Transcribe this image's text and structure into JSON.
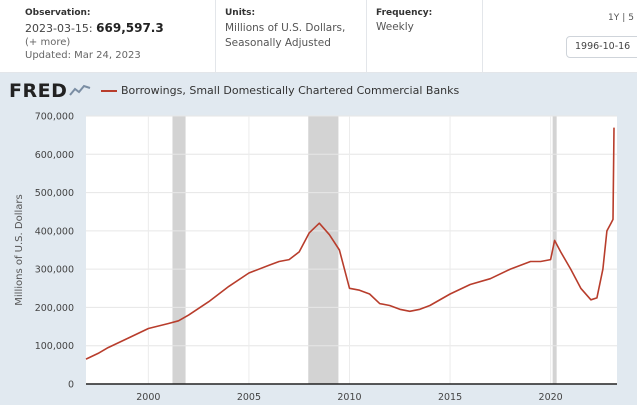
{
  "header": {
    "observation_label": "Observation:",
    "observation_date": "2023-03-15:",
    "observation_value": "669,597.3",
    "more_label": "(+ more)",
    "updated_text": "Updated: Mar 24, 2023",
    "units_label": "Units:",
    "units_line1": "Millions of U.S. Dollars,",
    "units_line2": "Seasonally Adjusted",
    "frequency_label": "Frequency:",
    "frequency_value": "Weekly",
    "range_1y": "1Y",
    "range_next": "5",
    "start_date": "1996-10-16"
  },
  "logo_text": "FRED",
  "colors": {
    "series": "#b83d2c",
    "recession": "#d3d3d3",
    "panel": "#e1e9f0",
    "plot_bg": "#ffffff"
  },
  "chart_data": {
    "type": "line",
    "title": "",
    "xlabel": "",
    "ylabel": "Millions of U.S. Dollars",
    "xlim": [
      1996.9,
      2023.3
    ],
    "ylim": [
      0,
      700000
    ],
    "y_ticks": [
      0,
      100000,
      200000,
      300000,
      400000,
      500000,
      600000,
      700000
    ],
    "y_tick_labels": [
      "0",
      "100,000",
      "200,000",
      "300,000",
      "400,000",
      "500,000",
      "600,000",
      "700,000"
    ],
    "x_ticks": [
      2000,
      2005,
      2010,
      2015,
      2020
    ],
    "x_tick_labels": [
      "2000",
      "2005",
      "2010",
      "2015",
      "2020"
    ],
    "grid": true,
    "legend_position": "top-left",
    "recessions": [
      [
        2001.2,
        2001.85
      ],
      [
        2007.95,
        2009.45
      ],
      [
        2020.1,
        2020.3
      ]
    ],
    "series": [
      {
        "name": "Borrowings, Small Domestically Chartered Commercial Banks",
        "x": [
          1996.9,
          1997.5,
          1998.0,
          1999.0,
          2000.0,
          2001.0,
          2001.5,
          2002.0,
          2003.0,
          2004.0,
          2005.0,
          2006.0,
          2006.5,
          2007.0,
          2007.5,
          2008.0,
          2008.5,
          2009.0,
          2009.5,
          2010.0,
          2010.5,
          2011.0,
          2011.5,
          2012.0,
          2012.5,
          2013.0,
          2013.5,
          2014.0,
          2015.0,
          2016.0,
          2017.0,
          2018.0,
          2019.0,
          2019.5,
          2020.0,
          2020.2,
          2020.5,
          2021.0,
          2021.5,
          2022.0,
          2022.3,
          2022.6,
          2022.8,
          2023.0,
          2023.1,
          2023.15
        ],
        "values": [
          65000,
          80000,
          95000,
          120000,
          145000,
          158000,
          165000,
          180000,
          215000,
          255000,
          290000,
          310000,
          320000,
          325000,
          345000,
          395000,
          420000,
          390000,
          350000,
          250000,
          245000,
          235000,
          210000,
          205000,
          195000,
          190000,
          195000,
          205000,
          235000,
          260000,
          275000,
          300000,
          320000,
          320000,
          325000,
          375000,
          345000,
          300000,
          250000,
          220000,
          225000,
          300000,
          400000,
          420000,
          430000,
          669597
        ]
      }
    ]
  }
}
